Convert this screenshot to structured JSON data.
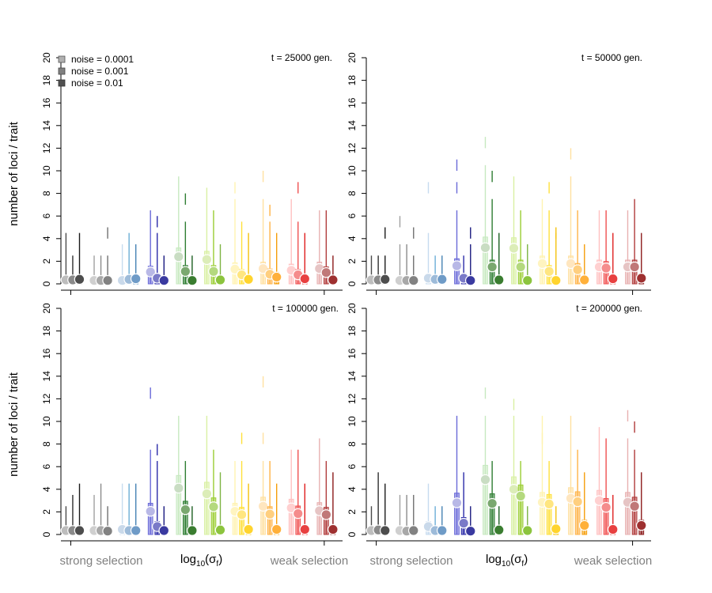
{
  "figure": {
    "ylabel": "number of loci / trait",
    "xlabel_main": "log",
    "xlabel_sub": "10",
    "xlabel_paren_open": "(σ",
    "xlabel_paren_sub": "f",
    "xlabel_paren_close": ")",
    "xlabel_left": "strong selection",
    "xlabel_right": "weak selection",
    "legend": [
      {
        "label": "noise = 0.0001",
        "color": "#b0b0b0"
      },
      {
        "label": "noise = 0.001",
        "color": "#808080"
      },
      {
        "label": "noise = 0.01",
        "color": "#505050"
      }
    ]
  },
  "colors": {
    "groups": [
      [
        "#4a4a4a",
        "#2e2e2e",
        "#1a1a1a"
      ],
      [
        "#a0a0a0",
        "#8a8a8a",
        "#707070"
      ],
      [
        "#c6dbef",
        "#6baed6",
        "#4682b4"
      ],
      [
        "#6a6ad8",
        "#2a2aa8",
        "#1a1a80"
      ],
      [
        "#c7e9c0",
        "#2e7d32",
        "#1b5e20"
      ],
      [
        "#d9f0a3",
        "#9acd32",
        "#7cb342"
      ],
      [
        "#fff3b0",
        "#ffe03a",
        "#f4c20d"
      ],
      [
        "#ffe0a0",
        "#ffb347",
        "#f59e0b"
      ],
      [
        "#ffc0c0",
        "#f05050",
        "#e02020"
      ],
      [
        "#e8b0b0",
        "#b03a3a",
        "#8b1a1a"
      ]
    ],
    "dots": [
      [
        "#bdbdbd",
        "#8a8a8a",
        "#4d4d4d"
      ],
      [
        "#cfcfcf",
        "#a8a8a8",
        "#828282"
      ],
      [
        "#c9d9ea",
        "#9dbbd9",
        "#6f9bc7"
      ],
      [
        "#b8b8e6",
        "#7a7ac8",
        "#3a3aa0"
      ],
      [
        "#c9ddc3",
        "#7aa86f",
        "#3a7d30"
      ],
      [
        "#dcedb8",
        "#b4d97e",
        "#8cc43e"
      ],
      [
        "#fff4c0",
        "#ffe680",
        "#ffd42e"
      ],
      [
        "#ffe6bf",
        "#ffcf7f",
        "#ffb03a"
      ],
      [
        "#ffd0d0",
        "#f58c8c",
        "#e84040"
      ],
      [
        "#e6c4c4",
        "#c07878",
        "#9e3030"
      ]
    ]
  },
  "chart_data": [
    {
      "type": "boxplot",
      "title": "t = 25000 gen.",
      "ylabel": "number of loci / trait",
      "ylim": [
        0,
        20
      ],
      "yticks": [
        0,
        2,
        4,
        6,
        8,
        10,
        12,
        14,
        16,
        18,
        20
      ],
      "groups": 10,
      "series": [
        "noise = 0.0001",
        "noise = 0.001",
        "noise = 0.01"
      ],
      "means": [
        [
          0.35,
          0.35,
          0.4
        ],
        [
          0.3,
          0.3,
          0.3
        ],
        [
          0.3,
          0.4,
          0.45
        ],
        [
          1.05,
          0.5,
          0.3
        ],
        [
          2.4,
          1.1,
          0.3
        ],
        [
          2.15,
          1.1,
          0.35
        ],
        [
          1.3,
          0.8,
          0.4
        ],
        [
          1.35,
          0.85,
          0.6
        ],
        [
          1.2,
          0.8,
          0.45
        ],
        [
          1.35,
          1.0,
          0.35
        ]
      ],
      "whisker_max": [
        [
          4.5,
          2.5,
          4.5
        ],
        [
          2.5,
          2.5,
          2.5
        ],
        [
          3.5,
          4.5,
          3.5
        ],
        [
          6.5,
          4.5,
          2.5
        ],
        [
          9.5,
          5.5,
          2.5
        ],
        [
          8.5,
          6.5,
          3.5
        ],
        [
          7.5,
          5.5,
          4.5
        ],
        [
          7.5,
          5.5,
          4.5
        ],
        [
          7.5,
          5.5,
          4.5
        ],
        [
          6.5,
          6.5,
          2.5
        ]
      ],
      "outliers": [
        [
          [],
          [],
          []
        ],
        [
          [],
          [],
          [
            4.5
          ]
        ],
        [
          [],
          [],
          []
        ],
        [
          [],
          [
            5.5
          ],
          []
        ],
        [
          [],
          [
            7.5
          ],
          []
        ],
        [
          [],
          [],
          []
        ],
        [
          [
            8.5
          ],
          [],
          []
        ],
        [
          [
            9.5
          ],
          [
            6.5
          ],
          []
        ],
        [
          [],
          [
            8.5
          ],
          []
        ],
        [
          [],
          [],
          []
        ]
      ]
    },
    {
      "type": "boxplot",
      "title": "t = 50000 gen.",
      "ylim": [
        0,
        20
      ],
      "yticks": [
        0,
        2,
        4,
        6,
        8,
        10,
        12,
        14,
        16,
        18,
        20
      ],
      "groups": 10,
      "series": [
        "noise = 0.0001",
        "noise = 0.001",
        "noise = 0.01"
      ],
      "means": [
        [
          0.35,
          0.35,
          0.4
        ],
        [
          0.3,
          0.3,
          0.3
        ],
        [
          0.5,
          0.4,
          0.4
        ],
        [
          1.6,
          0.5,
          0.3
        ],
        [
          3.2,
          1.5,
          0.35
        ],
        [
          3.15,
          1.5,
          0.3
        ],
        [
          1.8,
          1.1,
          0.3
        ],
        [
          1.8,
          1.25,
          0.35
        ],
        [
          1.5,
          1.4,
          0.45
        ],
        [
          1.5,
          1.5,
          0.5
        ]
      ],
      "whisker_max": [
        [
          2.5,
          2.5,
          2.5
        ],
        [
          3.5,
          3.5,
          2.5
        ],
        [
          4.5,
          2.5,
          2.5
        ],
        [
          6.5,
          2.5,
          3.5
        ],
        [
          10.5,
          7.5,
          4.5
        ],
        [
          9.5,
          6.5,
          3.5
        ],
        [
          7.5,
          6.5,
          4.5
        ],
        [
          9.5,
          6.5,
          3.5
        ],
        [
          6.5,
          6.5,
          4.5
        ],
        [
          6.5,
          7.5,
          4.5
        ]
      ],
      "outliers": [
        [
          [],
          [],
          [
            4.5
          ]
        ],
        [
          [
            5.5
          ],
          [],
          [
            4.5
          ]
        ],
        [
          [
            8.5
          ],
          [],
          []
        ],
        [
          [
            10.5,
            8.5
          ],
          [],
          [
            4.5
          ]
        ],
        [
          [
            12.5
          ],
          [
            9.5
          ],
          []
        ],
        [
          [],
          [],
          []
        ],
        [
          [],
          [
            8.5
          ],
          [
            4.5
          ]
        ],
        [
          [
            11.5
          ],
          [],
          []
        ],
        [
          [],
          [],
          []
        ],
        [
          [],
          [],
          []
        ]
      ]
    },
    {
      "type": "boxplot",
      "title": "t = 100000 gen.",
      "ylabel": "number of loci / trait",
      "ylim": [
        0,
        20
      ],
      "yticks": [
        0,
        2,
        4,
        6,
        8,
        10,
        12,
        14,
        16,
        18,
        20
      ],
      "groups": 10,
      "series": [
        "noise = 0.0001",
        "noise = 0.001",
        "noise = 0.01"
      ],
      "means": [
        [
          0.35,
          0.35,
          0.35
        ],
        [
          0.35,
          0.35,
          0.3
        ],
        [
          0.45,
          0.35,
          0.35
        ],
        [
          2.05,
          0.7,
          0.35
        ],
        [
          4.1,
          2.2,
          0.35
        ],
        [
          3.6,
          2.45,
          0.4
        ],
        [
          2.05,
          1.75,
          0.45
        ],
        [
          2.5,
          1.8,
          0.45
        ],
        [
          2.35,
          1.85,
          0.45
        ],
        [
          2.1,
          1.75,
          0.45
        ]
      ],
      "whisker_max": [
        [
          2.5,
          3.5,
          4.5
        ],
        [
          3.5,
          4.5,
          2.5
        ],
        [
          4.5,
          4.5,
          4.5
        ],
        [
          7.5,
          6.5,
          2.5
        ],
        [
          10.5,
          6.5,
          2.5
        ],
        [
          10.5,
          7.5,
          5.5
        ],
        [
          6.5,
          6.5,
          4.5
        ],
        [
          6.5,
          6.5,
          4.5
        ],
        [
          7.5,
          7.5,
          4.5
        ],
        [
          8.5,
          6.5,
          5.5
        ]
      ],
      "outliers": [
        [
          [],
          [],
          []
        ],
        [
          [],
          [],
          []
        ],
        [
          [],
          [],
          []
        ],
        [
          [
            12.5
          ],
          [
            7.5
          ],
          []
        ],
        [
          [],
          [],
          []
        ],
        [
          [],
          [],
          []
        ],
        [
          [],
          [
            8.5
          ],
          []
        ],
        [
          [
            13.5,
            8.5
          ],
          [],
          []
        ],
        [
          [],
          [],
          []
        ],
        [
          [],
          [],
          []
        ]
      ]
    },
    {
      "type": "boxplot",
      "title": "t = 200000 gen.",
      "ylim": [
        0,
        20
      ],
      "yticks": [
        0,
        2,
        4,
        6,
        8,
        10,
        12,
        14,
        16,
        18,
        20
      ],
      "groups": 10,
      "series": [
        "noise = 0.0001",
        "noise = 0.001",
        "noise = 0.01"
      ],
      "means": [
        [
          0.35,
          0.4,
          0.35
        ],
        [
          0.35,
          0.3,
          0.35
        ],
        [
          0.7,
          0.35,
          0.35
        ],
        [
          2.8,
          1.0,
          0.3
        ],
        [
          4.85,
          2.75,
          0.4
        ],
        [
          4.0,
          3.4,
          0.35
        ],
        [
          2.85,
          2.7,
          0.5
        ],
        [
          3.2,
          2.9,
          0.8
        ],
        [
          3.0,
          2.4,
          0.45
        ],
        [
          2.85,
          2.5,
          0.8
        ]
      ],
      "whisker_max": [
        [
          2.5,
          5.5,
          4.5
        ],
        [
          3.5,
          3.5,
          3.5
        ],
        [
          4.5,
          2.5,
          2.5
        ],
        [
          10.5,
          5.5,
          2.5
        ],
        [
          10.5,
          6.5,
          2.5
        ],
        [
          10.5,
          6.5,
          2.5
        ],
        [
          10.5,
          6.5,
          2.5
        ],
        [
          10.5,
          7.5,
          5.5
        ],
        [
          9.5,
          8.5,
          3.5
        ],
        [
          8.5,
          7.5,
          5.5
        ]
      ],
      "outliers": [
        [
          [],
          [],
          []
        ],
        [
          [],
          [],
          []
        ],
        [
          [],
          [],
          []
        ],
        [
          [],
          [],
          []
        ],
        [
          [
            12.5
          ],
          [],
          []
        ],
        [
          [
            11.5
          ],
          [],
          []
        ],
        [
          [
            8.5
          ],
          [],
          []
        ],
        [
          [],
          [],
          []
        ],
        [
          [],
          [],
          []
        ],
        [
          [
            10.5
          ],
          [
            9.5
          ],
          []
        ]
      ]
    }
  ]
}
